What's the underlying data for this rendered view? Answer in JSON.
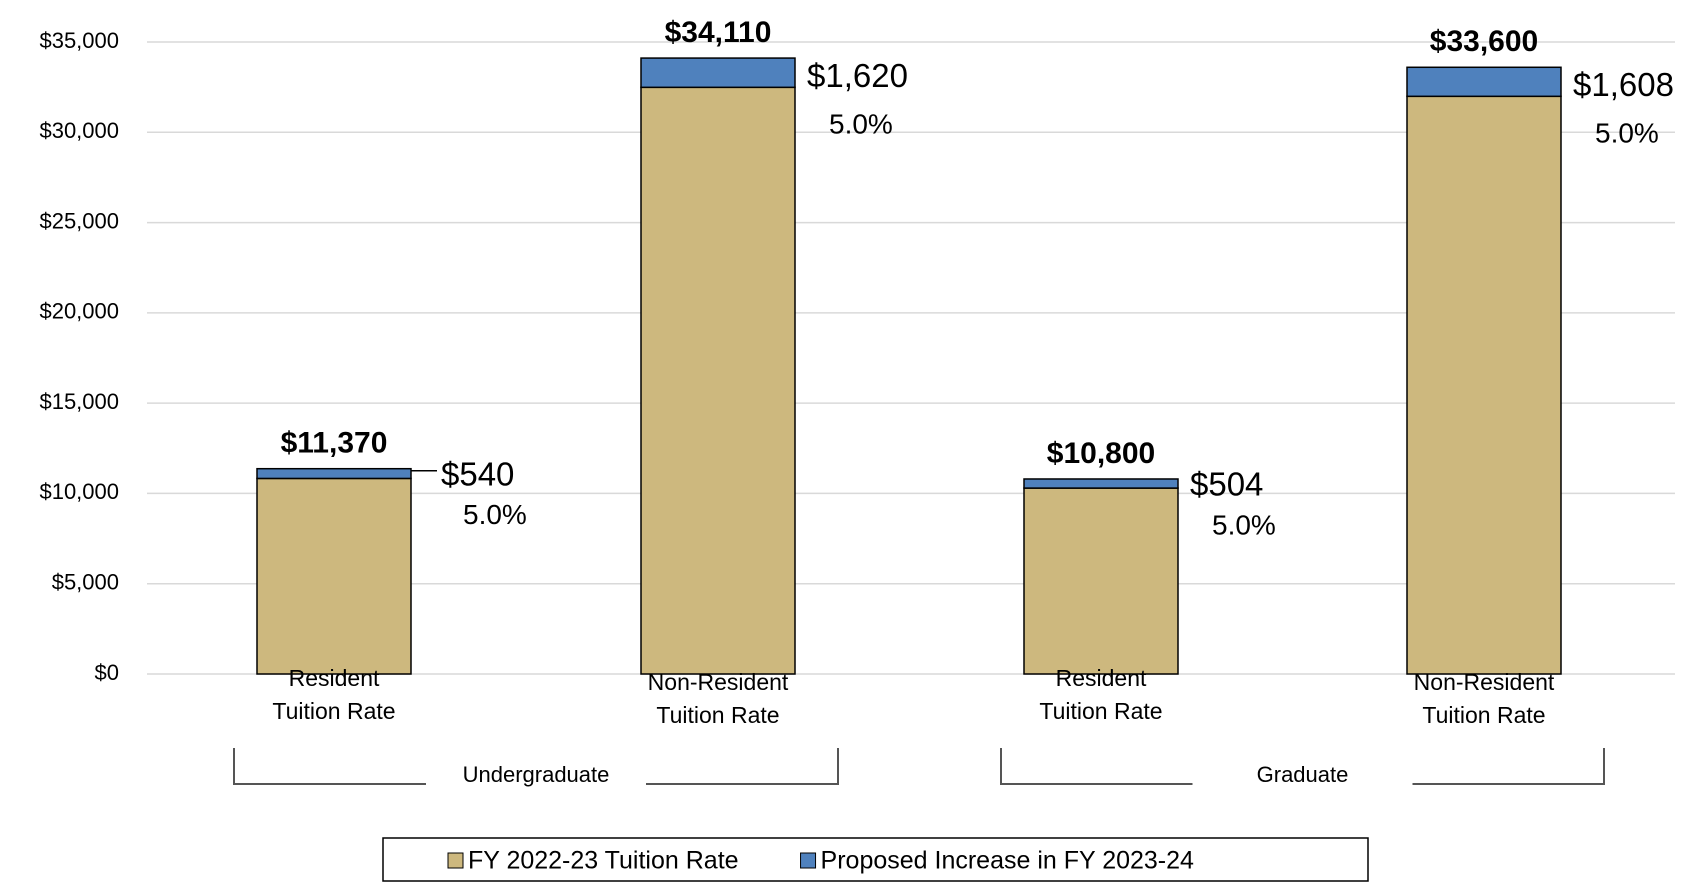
{
  "chart_data": {
    "type": "stacked-bar",
    "categories": [
      "Resident\nTuition Rate",
      "Non-Resident\nTuition Rate",
      "Resident\nTuition Rate",
      "Non-Resident\nTuition Rate"
    ],
    "groups": [
      {
        "name": "Undergraduate",
        "span": [
          0,
          1
        ]
      },
      {
        "name": "Graduate",
        "span": [
          2,
          3
        ]
      }
    ],
    "series": [
      {
        "name": "FY 2022-23 Tuition Rate",
        "color": "#cdb87e",
        "values": [
          10830,
          32490,
          10296,
          31992
        ]
      },
      {
        "name": "Proposed Increase in FY 2023-24",
        "color": "#4f81bd",
        "values": [
          540,
          1620,
          504,
          1608
        ],
        "value_labels": [
          "$540",
          "$1,620",
          "$504",
          "$1,608"
        ]
      }
    ],
    "total_labels": [
      "$11,370",
      "$34,110",
      "$10,800",
      "$33,600"
    ],
    "percent_labels": [
      "5.0%",
      "5.0%",
      "5.0%",
      "5.0%"
    ],
    "ylim": [
      0,
      35000
    ],
    "yticks": [
      {
        "value": 0,
        "label": "$0"
      },
      {
        "value": 5000,
        "label": "$5,000"
      },
      {
        "value": 10000,
        "label": "$10,000"
      },
      {
        "value": 15000,
        "label": "$15,000"
      },
      {
        "value": 20000,
        "label": "$20,000"
      },
      {
        "value": 25000,
        "label": "$25,000"
      },
      {
        "value": 30000,
        "label": "$30,000"
      },
      {
        "value": 35000,
        "label": "$35,000"
      }
    ],
    "grid": true,
    "legend": "bottom"
  }
}
